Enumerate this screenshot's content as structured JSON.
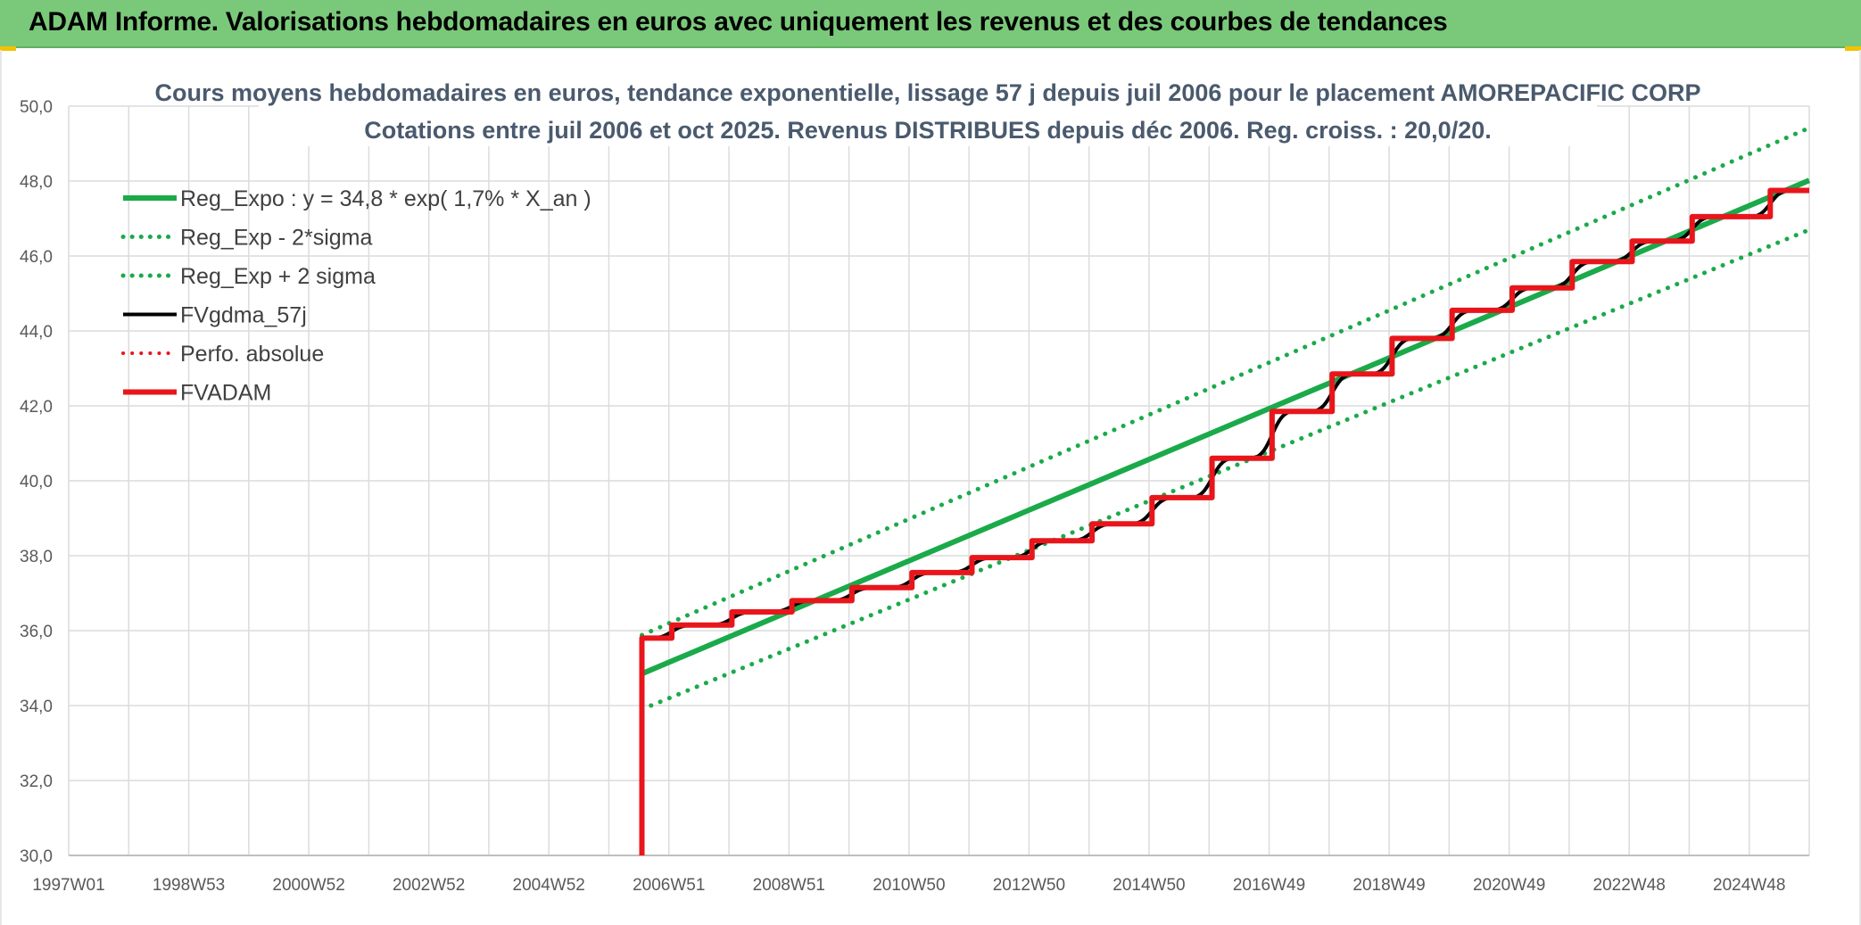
{
  "header": {
    "title": "ADAM Informe. Valorisations hebdomadaires en euros avec uniquement les revenus et des courbes de tendances"
  },
  "colors": {
    "banner": "#7ac97a",
    "trend": "#1aaa4a",
    "fvgdma": "#000000",
    "fvadam": "#e8161b",
    "grid": "#dcdcdc"
  },
  "chart_data": {
    "type": "line",
    "title_lines": [
      "Cours moyens hebdomadaires en euros, tendance exponentielle, lissage 57 j depuis juil 2006 pour le placement AMOREPACIFIC CORP",
      "Cotations entre juil 2006 et oct 2025. Revenus DISTRIBUES depuis déc 2006. Reg. croiss. : 20,0/20."
    ],
    "xlabel": "",
    "ylabel": "",
    "ylim": [
      30,
      50
    ],
    "y_ticks": [
      "30,0",
      "32,0",
      "34,0",
      "36,0",
      "38,0",
      "40,0",
      "42,0",
      "44,0",
      "46,0",
      "48,0",
      "50,0"
    ],
    "xlim": [
      1997.0,
      2026.0
    ],
    "x_ticks": [
      {
        "year": 1997.0,
        "label": "1997W01"
      },
      {
        "year": 1999.0,
        "label": "1998W53"
      },
      {
        "year": 2001.0,
        "label": "2000W52"
      },
      {
        "year": 2003.0,
        "label": "2002W52"
      },
      {
        "year": 2005.0,
        "label": "2004W52"
      },
      {
        "year": 2007.0,
        "label": "2006W51"
      },
      {
        "year": 2009.0,
        "label": "2008W51"
      },
      {
        "year": 2011.0,
        "label": "2010W50"
      },
      {
        "year": 2013.0,
        "label": "2012W50"
      },
      {
        "year": 2015.0,
        "label": "2014W50"
      },
      {
        "year": 2017.0,
        "label": "2016W49"
      },
      {
        "year": 2019.0,
        "label": "2018W49"
      },
      {
        "year": 2021.0,
        "label": "2020W49"
      },
      {
        "year": 2023.0,
        "label": "2022W48"
      },
      {
        "year": 2025.0,
        "label": "2024W48"
      }
    ],
    "grid": true,
    "legend_position": "top-left",
    "series": [
      {
        "name": "Reg_Expo : y = 34,8 * exp( 1,7% *  X_an )",
        "style": "solid",
        "color": "#1aaa4a",
        "width": 6,
        "points": [
          [
            2006.55,
            34.85
          ],
          [
            2026.0,
            48.02
          ]
        ]
      },
      {
        "name": "Reg_Exp - 2*sigma",
        "style": "dotted",
        "color": "#1aaa4a",
        "width": 5,
        "points": [
          [
            2006.55,
            33.9
          ],
          [
            2026.0,
            46.7
          ]
        ]
      },
      {
        "name": "Reg_Exp + 2 sigma",
        "style": "dotted",
        "color": "#1aaa4a",
        "width": 5,
        "points": [
          [
            2006.55,
            35.88
          ],
          [
            2026.0,
            49.42
          ]
        ]
      },
      {
        "name": "FVgdma_57j",
        "style": "solid",
        "color": "#000000",
        "width": 4,
        "smooth": true,
        "points": [
          [
            2006.55,
            35.8
          ],
          [
            2007.05,
            35.8
          ],
          [
            2007.05,
            36.15
          ],
          [
            2008.05,
            36.15
          ],
          [
            2008.05,
            36.5
          ],
          [
            2009.05,
            36.5
          ],
          [
            2009.05,
            36.8
          ],
          [
            2010.05,
            36.8
          ],
          [
            2010.05,
            37.15
          ],
          [
            2011.05,
            37.15
          ],
          [
            2011.05,
            37.55
          ],
          [
            2012.05,
            37.55
          ],
          [
            2012.05,
            37.95
          ],
          [
            2013.05,
            37.95
          ],
          [
            2013.05,
            38.4
          ],
          [
            2014.05,
            38.4
          ],
          [
            2014.05,
            38.85
          ],
          [
            2015.05,
            38.85
          ],
          [
            2015.05,
            39.55
          ],
          [
            2016.05,
            39.55
          ],
          [
            2016.05,
            40.6
          ],
          [
            2017.05,
            40.6
          ],
          [
            2017.05,
            41.85
          ],
          [
            2018.05,
            41.85
          ],
          [
            2018.05,
            42.85
          ],
          [
            2019.05,
            42.85
          ],
          [
            2019.05,
            43.8
          ],
          [
            2020.05,
            43.8
          ],
          [
            2020.05,
            44.55
          ],
          [
            2021.05,
            44.55
          ],
          [
            2021.05,
            45.15
          ],
          [
            2022.05,
            45.15
          ],
          [
            2022.05,
            45.85
          ],
          [
            2023.05,
            45.85
          ],
          [
            2023.05,
            46.4
          ],
          [
            2024.05,
            46.4
          ],
          [
            2024.05,
            47.05
          ],
          [
            2025.35,
            47.05
          ],
          [
            2025.35,
            47.75
          ],
          [
            2026.0,
            47.75
          ]
        ]
      },
      {
        "name": "Perfo. absolue",
        "style": "dotted",
        "color": "#e8161b",
        "width": 4,
        "points": []
      },
      {
        "name": "FVADAM",
        "style": "solid",
        "color": "#e8161b",
        "width": 6,
        "points": [
          [
            2006.55,
            30.0
          ],
          [
            2006.55,
            35.8
          ],
          [
            2007.05,
            35.8
          ],
          [
            2007.05,
            36.15
          ],
          [
            2008.05,
            36.15
          ],
          [
            2008.05,
            36.5
          ],
          [
            2009.05,
            36.5
          ],
          [
            2009.05,
            36.8
          ],
          [
            2010.05,
            36.8
          ],
          [
            2010.05,
            37.15
          ],
          [
            2011.05,
            37.15
          ],
          [
            2011.05,
            37.55
          ],
          [
            2012.05,
            37.55
          ],
          [
            2012.05,
            37.95
          ],
          [
            2013.05,
            37.95
          ],
          [
            2013.05,
            38.4
          ],
          [
            2014.05,
            38.4
          ],
          [
            2014.05,
            38.85
          ],
          [
            2015.05,
            38.85
          ],
          [
            2015.05,
            39.55
          ],
          [
            2016.05,
            39.55
          ],
          [
            2016.05,
            40.6
          ],
          [
            2017.05,
            40.6
          ],
          [
            2017.05,
            41.85
          ],
          [
            2018.05,
            41.85
          ],
          [
            2018.05,
            42.85
          ],
          [
            2019.05,
            42.85
          ],
          [
            2019.05,
            43.8
          ],
          [
            2020.05,
            43.8
          ],
          [
            2020.05,
            44.55
          ],
          [
            2021.05,
            44.55
          ],
          [
            2021.05,
            45.15
          ],
          [
            2022.05,
            45.15
          ],
          [
            2022.05,
            45.85
          ],
          [
            2023.05,
            45.85
          ],
          [
            2023.05,
            46.4
          ],
          [
            2024.05,
            46.4
          ],
          [
            2024.05,
            47.05
          ],
          [
            2025.35,
            47.05
          ],
          [
            2025.35,
            47.75
          ],
          [
            2026.0,
            47.75
          ]
        ]
      }
    ]
  }
}
